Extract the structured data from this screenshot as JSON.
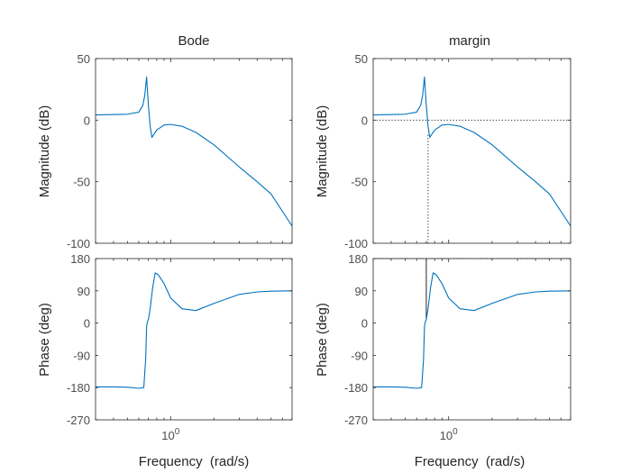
{
  "chart_data": [
    {
      "type": "line",
      "title": "Bode",
      "xlabel": "",
      "ylabel": "Magnitude (dB)",
      "xscale": "log",
      "xlim": [
        0.3,
        7
      ],
      "ylim": [
        -100,
        50
      ],
      "yticks": [
        50,
        0,
        -50,
        -100
      ],
      "series": [
        {
          "x": [
            0.3,
            0.5,
            0.6,
            0.64,
            0.66,
            0.68,
            0.7,
            0.72,
            0.74,
            0.8,
            0.9,
            1.0,
            1.2,
            1.5,
            2,
            3,
            4,
            5,
            7
          ],
          "values": [
            4.2,
            4.8,
            6.5,
            12,
            20,
            35,
            12,
            -5,
            -14,
            -8,
            -4,
            -3.5,
            -5,
            -10,
            -20,
            -38,
            -50,
            -60,
            -86
          ]
        }
      ]
    },
    {
      "type": "line",
      "title": "margin",
      "xlabel": "",
      "ylabel": "Magnitude (dB)",
      "xscale": "log",
      "xlim": [
        0.3,
        7
      ],
      "ylim": [
        -100,
        50
      ],
      "yticks": [
        50,
        0,
        -50,
        -100
      ],
      "series": [
        {
          "x": [
            0.3,
            0.5,
            0.6,
            0.64,
            0.66,
            0.68,
            0.7,
            0.72,
            0.74,
            0.8,
            0.9,
            1.0,
            1.2,
            1.5,
            2,
            3,
            4,
            5,
            7
          ],
          "values": [
            4.2,
            4.8,
            6.5,
            12,
            20,
            35,
            12,
            -5,
            -14,
            -8,
            -4,
            -3.5,
            -5,
            -10,
            -20,
            -38,
            -50,
            -60,
            -86
          ]
        }
      ],
      "margin_crossover_x": 0.72
    },
    {
      "type": "line",
      "title": "",
      "xlabel": "Frequency  (rad/s)",
      "ylabel": "Phase (deg)",
      "xscale": "log",
      "xlim": [
        0.3,
        7
      ],
      "ylim": [
        -270,
        180
      ],
      "yticks": [
        180,
        90,
        0,
        -90,
        -180,
        -270
      ],
      "xtick_label": "10^0",
      "series": [
        {
          "x": [
            0.3,
            0.4,
            0.5,
            0.6,
            0.65,
            0.67,
            0.68,
            0.69,
            0.7,
            0.72,
            0.75,
            0.78,
            0.82,
            0.9,
            1.0,
            1.2,
            1.5,
            2,
            3,
            4,
            5,
            7
          ],
          "values": [
            -178,
            -178,
            -179,
            -182,
            -180,
            -100,
            -10,
            5,
            10,
            40,
            100,
            140,
            135,
            110,
            70,
            40,
            35,
            55,
            80,
            87,
            89,
            90
          ]
        }
      ]
    },
    {
      "type": "line",
      "title": "",
      "xlabel": "Frequency  (rad/s)",
      "ylabel": "Phase (deg)",
      "xscale": "log",
      "xlim": [
        0.3,
        7
      ],
      "ylim": [
        -270,
        180
      ],
      "yticks": [
        180,
        90,
        0,
        -90,
        -180,
        -270
      ],
      "xtick_label": "10^0",
      "series": [
        {
          "x": [
            0.3,
            0.4,
            0.5,
            0.6,
            0.65,
            0.67,
            0.68,
            0.69,
            0.7,
            0.72,
            0.75,
            0.78,
            0.82,
            0.9,
            1.0,
            1.2,
            1.5,
            2,
            3,
            4,
            5,
            7
          ],
          "values": [
            -178,
            -178,
            -179,
            -182,
            -180,
            -100,
            -10,
            5,
            10,
            40,
            100,
            140,
            135,
            110,
            70,
            40,
            35,
            55,
            80,
            87,
            89,
            90
          ]
        }
      ],
      "margin_phase_x": 0.7
    }
  ]
}
